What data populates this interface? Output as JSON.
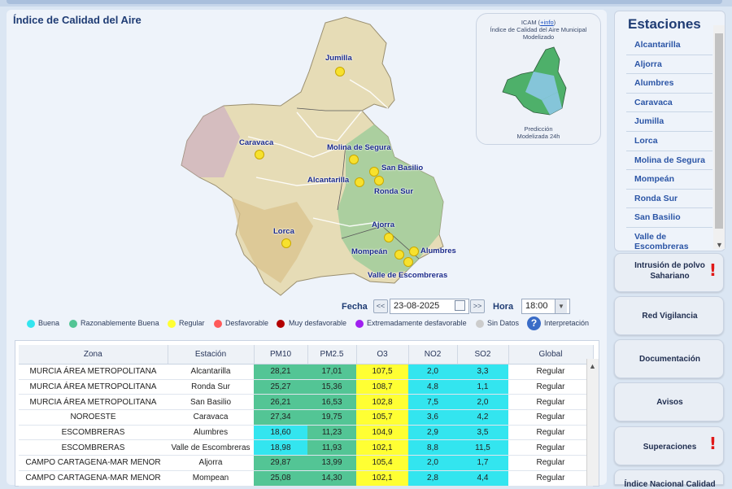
{
  "page": {
    "title": "Índice de Calidad del Aire"
  },
  "map": {
    "stations": [
      {
        "name": "Jumilla"
      },
      {
        "name": "Caravaca"
      },
      {
        "name": "Molina de Segura"
      },
      {
        "name": "San Basilio"
      },
      {
        "name": "Alcantarilla"
      },
      {
        "name": "Ronda Sur"
      },
      {
        "name": "Ajorra"
      },
      {
        "name": "Lorca"
      },
      {
        "name": "Alumbres"
      },
      {
        "name": "Mompeán"
      },
      {
        "name": "Valle de Escombreras"
      }
    ]
  },
  "icam": {
    "title_prefix": "ICAM (",
    "info_link": "+info",
    "title_suffix": ")",
    "line2": "Índice de Calidad del Aire Municipal",
    "line3": "Modelizado",
    "pred1": "Predicción",
    "pred2": "Modelizada 24h"
  },
  "controls": {
    "date_label": "Fecha",
    "prev_label": "<<",
    "date_value": "23-08-2025",
    "next_label": ">>",
    "time_label": "Hora",
    "time_value": "18:00"
  },
  "legend": {
    "items": [
      {
        "label": "Buena",
        "color": "#33e5ef"
      },
      {
        "label": "Razonablemente Buena",
        "color": "#53c595"
      },
      {
        "label": "Regular",
        "color": "#ffff33"
      },
      {
        "label": "Desfavorable",
        "color": "#ff5a5a"
      },
      {
        "label": "Muy desfavorable",
        "color": "#b30000"
      },
      {
        "label": "Extremadamente desfavorable",
        "color": "#a020f0"
      },
      {
        "label": "Sin Datos",
        "color": "#cccccc"
      }
    ],
    "interpretation_label": "Interpretación"
  },
  "table": {
    "headers": [
      "Zona",
      "Estación",
      "PM10",
      "PM2.5",
      "O3",
      "NO2",
      "SO2",
      "Global"
    ],
    "rows": [
      {
        "zona": "MURCIA ÁREA METROPOLITANA",
        "estacion": "Alcantarilla",
        "pm10": "28,21",
        "pm25": "17,01",
        "o3": "107,5",
        "no2": "2,0",
        "so2": "3,3",
        "global": "Regular"
      },
      {
        "zona": "MURCIA ÁREA METROPOLITANA",
        "estacion": "Ronda Sur",
        "pm10": "25,27",
        "pm25": "15,36",
        "o3": "108,7",
        "no2": "4,8",
        "so2": "1,1",
        "global": "Regular"
      },
      {
        "zona": "MURCIA ÁREA METROPOLITANA",
        "estacion": "San Basilio",
        "pm10": "26,21",
        "pm25": "16,53",
        "o3": "102,8",
        "no2": "7,5",
        "so2": "2,0",
        "global": "Regular"
      },
      {
        "zona": "NOROESTE",
        "estacion": "Caravaca",
        "pm10": "27,34",
        "pm25": "19,75",
        "o3": "105,7",
        "no2": "3,6",
        "so2": "4,2",
        "global": "Regular"
      },
      {
        "zona": "ESCOMBRERAS",
        "estacion": "Alumbres",
        "pm10": "18,60",
        "pm25": "11,23",
        "o3": "104,9",
        "no2": "2,9",
        "so2": "3,5",
        "global": "Regular"
      },
      {
        "zona": "ESCOMBRERAS",
        "estacion": "Valle de Escombreras",
        "pm10": "18,98",
        "pm25": "11,93",
        "o3": "102,1",
        "no2": "8,8",
        "so2": "11,5",
        "global": "Regular"
      },
      {
        "zona": "CAMPO CARTAGENA-MAR MENOR",
        "estacion": "Aljorra",
        "pm10": "29,87",
        "pm25": "13,99",
        "o3": "105,4",
        "no2": "2,0",
        "so2": "1,7",
        "global": "Regular"
      },
      {
        "zona": "CAMPO CARTAGENA-MAR MENOR",
        "estacion": "Mompean",
        "pm10": "25,08",
        "pm25": "14,30",
        "o3": "102,1",
        "no2": "2,8",
        "so2": "4,4",
        "global": "Regular"
      }
    ]
  },
  "sidebar": {
    "title": "Estaciones",
    "stations": [
      "Alcantarilla",
      "Aljorra",
      "Alumbres",
      "Caravaca",
      "Jumilla",
      "Lorca",
      "Molina de Segura",
      "Mompeán",
      "Ronda Sur",
      "San Basilio",
      "Valle de Escombreras"
    ]
  },
  "side_buttons": {
    "intrusion_line1": "Intrusión de polvo",
    "intrusion_line2": "Sahariano",
    "red_vigilancia": "Red Vigilancia",
    "documentacion": "Documentación",
    "avisos": "Avisos",
    "superaciones": "Superaciones",
    "indice_nacional": "Índice Nacional Calidad",
    "alert_glyph": "!"
  }
}
